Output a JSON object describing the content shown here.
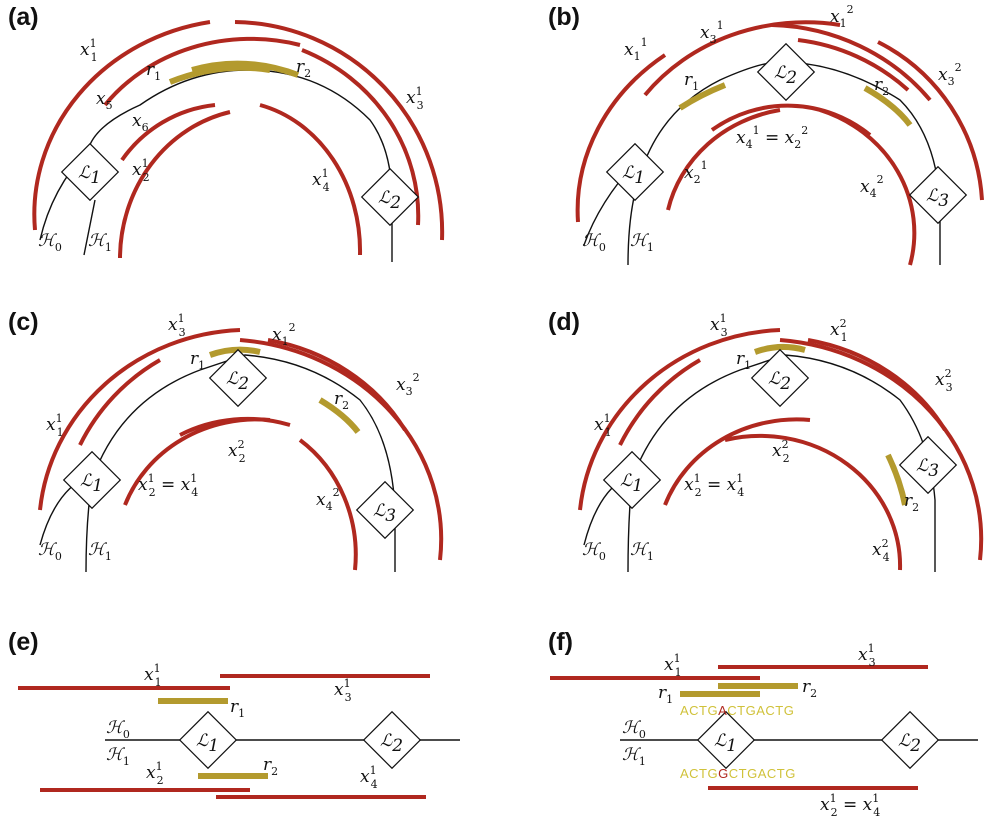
{
  "panels": {
    "a": {
      "label": "(a)"
    },
    "b": {
      "label": "(b)"
    },
    "c": {
      "label": "(c)"
    },
    "d": {
      "label": "(d)"
    },
    "e": {
      "label": "(e)"
    },
    "f": {
      "label": "(f)"
    }
  },
  "symbols": {
    "x": "x",
    "r": "r",
    "H": "ℋ",
    "L": "ℒ",
    "eq": " = ",
    "s1": "1",
    "s2": "2",
    "s3": "3",
    "s4": "4",
    "s5": "5",
    "s6": "6",
    "s0": "0"
  },
  "sequences": {
    "top_pre": "ACTG",
    "top_mut": "A",
    "top_post": "CTGACTG",
    "bot_pre": "ACTG",
    "bot_mut": "G",
    "bot_post": "CTGACTG"
  },
  "colors": {
    "read": "#b0281f",
    "short_read": "#b39a2e",
    "sequence": "#d0c23a",
    "mutation": "#b0281f"
  }
}
